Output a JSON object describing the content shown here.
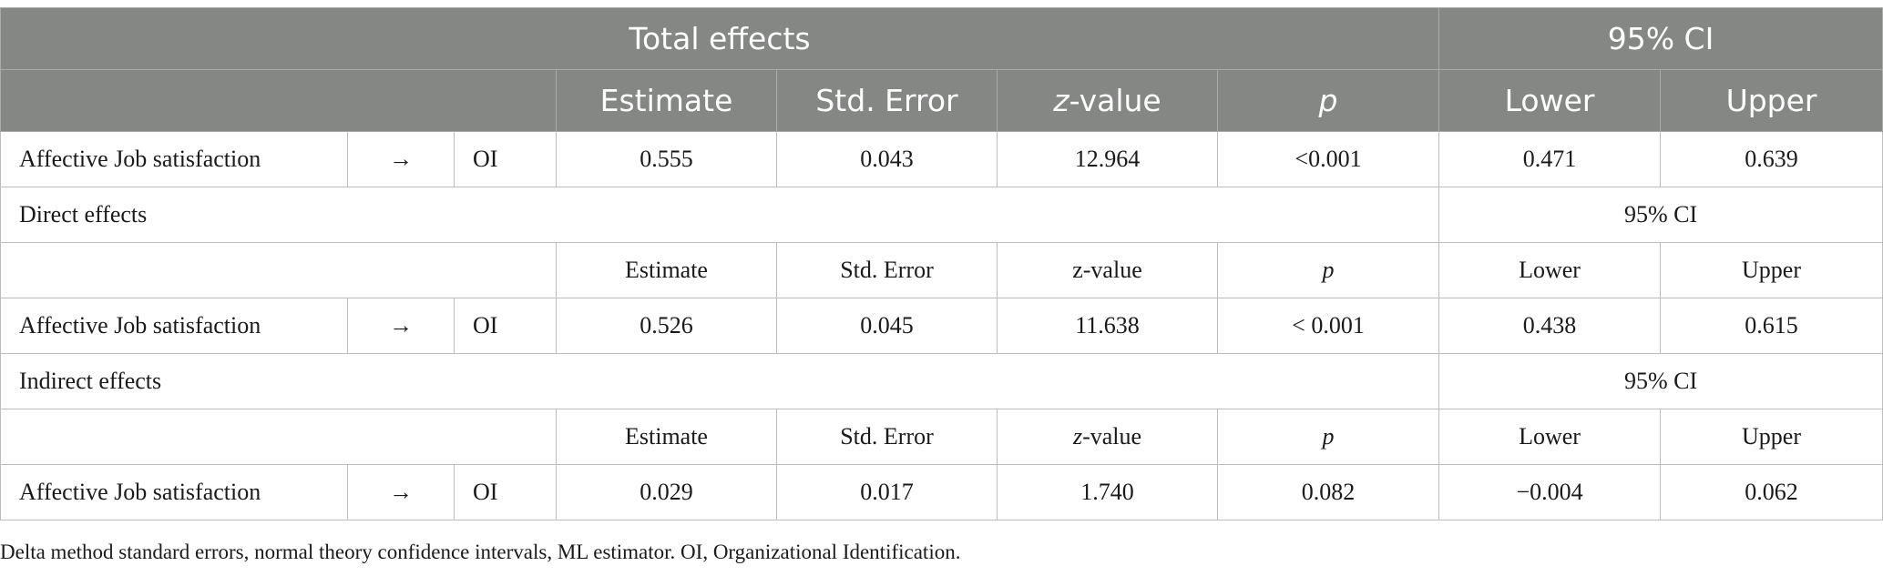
{
  "header": {
    "title": "Total effects",
    "ci": "95% CI",
    "columns": {
      "estimate": "Estimate",
      "std_error": "Std. Error",
      "z_italic": "z",
      "z_rest": "-value",
      "p": "p",
      "lower": "Lower",
      "upper": "Upper"
    }
  },
  "total_row": {
    "predictor": "Affective Job satisfaction",
    "arrow": "→",
    "outcome": "OI",
    "estimate": "0.555",
    "std_error": "0.043",
    "z_value": "12.964",
    "p": "<0.001",
    "lower": "0.471",
    "upper": "0.639"
  },
  "direct": {
    "title": "Direct effects",
    "ci": "95% CI",
    "columns": {
      "estimate": "Estimate",
      "std_error": "Std. Error",
      "z_value": "z-value",
      "p": "p",
      "lower": "Lower",
      "upper": "Upper"
    },
    "row": {
      "predictor": "Affective Job satisfaction",
      "arrow": "→",
      "outcome": "OI",
      "estimate": "0.526",
      "std_error": "0.045",
      "z_value": "11.638",
      "p": "< 0.001",
      "lower": "0.438",
      "upper": "0.615"
    }
  },
  "indirect": {
    "title": "Indirect effects",
    "ci": "95% CI",
    "columns": {
      "estimate": "Estimate",
      "std_error": "Std. Error",
      "z_italic": "z",
      "z_rest": "-value",
      "p": "p",
      "lower": "Lower",
      "upper": "Upper"
    },
    "row": {
      "predictor": "Affective Job satisfaction",
      "arrow": "→",
      "outcome": "OI",
      "estimate": "0.029",
      "std_error": "0.017",
      "z_value": "1.740",
      "p": "0.082",
      "lower": "−0.004",
      "upper": "0.062"
    }
  },
  "footnote": "Delta method standard errors, normal theory confidence intervals, ML estimator. OI, Organizational Identification.",
  "colors": {
    "header_bg": "#858785",
    "header_text": "#ffffff",
    "border": "#bdbdbd"
  }
}
